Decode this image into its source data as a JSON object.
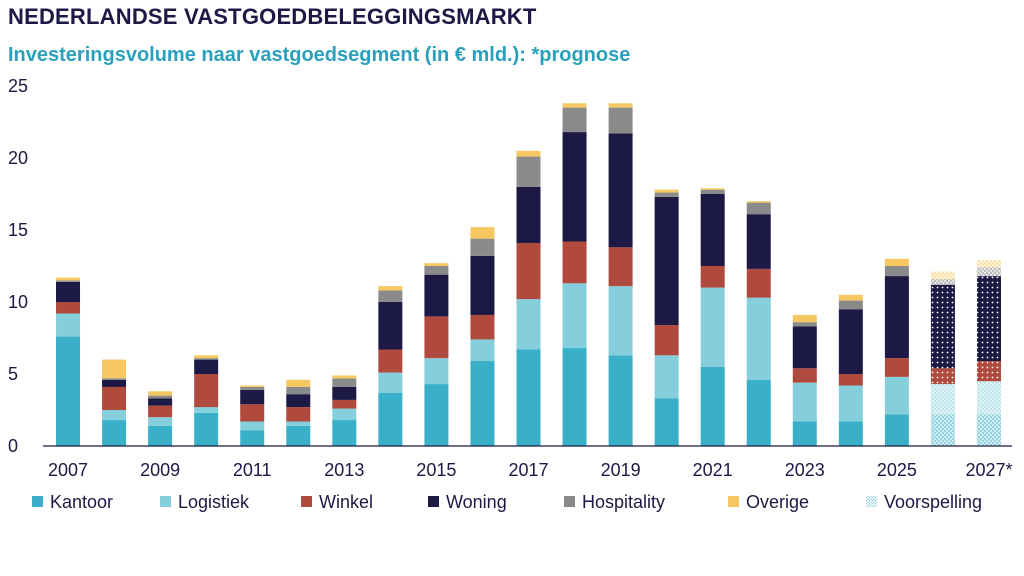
{
  "chart_data": {
    "type": "bar",
    "stacked": true,
    "title": "NEDERLANDSE VASTGOEDBELEGGINGSMARKT",
    "subtitle": "Investeringsvolume naar vastgoedsegment (in € mld.): *prognose",
    "xlabel": "",
    "ylabel": "",
    "ylim": [
      0,
      25
    ],
    "y_ticks": [
      "0",
      "5",
      "10",
      "15",
      "20",
      "25"
    ],
    "categories": [
      "2007",
      "2008",
      "2009",
      "2010",
      "2011",
      "2012",
      "2013",
      "2014",
      "2015",
      "2016",
      "2017",
      "2018",
      "2019",
      "2020",
      "2021",
      "2022",
      "2023",
      "2024",
      "2025",
      "2026*",
      "2027*"
    ],
    "x_tick_labels": [
      "2007",
      "2009",
      "2011",
      "2013",
      "2015",
      "2017",
      "2019",
      "2021",
      "2023",
      "2025",
      "2027*"
    ],
    "forecast_categories": [
      "2026*",
      "2027*"
    ],
    "grid": false,
    "legend_position": "bottom",
    "series": [
      {
        "name": "Kantoor",
        "color": "#3ab0c8",
        "values": [
          7.6,
          1.8,
          1.4,
          2.3,
          1.1,
          1.4,
          1.8,
          3.7,
          4.3,
          5.9,
          6.7,
          6.8,
          6.3,
          3.3,
          5.5,
          4.6,
          1.7,
          1.7,
          2.2,
          2.2,
          2.2
        ]
      },
      {
        "name": "Logistiek",
        "color": "#85cedb",
        "values": [
          1.6,
          0.7,
          0.6,
          0.4,
          0.6,
          0.3,
          0.8,
          1.4,
          1.8,
          1.5,
          3.5,
          4.5,
          4.8,
          3.0,
          5.5,
          5.7,
          2.7,
          2.5,
          2.6,
          2.1,
          2.3
        ]
      },
      {
        "name": "Winkel",
        "color": "#b14a3e",
        "values": [
          0.8,
          1.6,
          0.8,
          2.3,
          1.2,
          1.0,
          0.6,
          1.6,
          2.9,
          1.7,
          3.9,
          2.9,
          2.7,
          2.1,
          1.5,
          2.0,
          1.0,
          0.8,
          1.3,
          1.1,
          1.4
        ]
      },
      {
        "name": "Woning",
        "color": "#1c1a45",
        "values": [
          1.4,
          0.5,
          0.5,
          1.0,
          1.0,
          0.9,
          0.9,
          3.3,
          2.9,
          4.1,
          3.9,
          7.6,
          7.9,
          8.9,
          5.0,
          3.8,
          2.9,
          4.5,
          5.7,
          5.8,
          5.9
        ]
      },
      {
        "name": "Hospitality",
        "color": "#8a8a8a",
        "values": [
          0.1,
          0.1,
          0.2,
          0.1,
          0.2,
          0.5,
          0.6,
          0.8,
          0.6,
          1.2,
          2.1,
          1.7,
          1.8,
          0.3,
          0.3,
          0.8,
          0.3,
          0.6,
          0.7,
          0.4,
          0.6
        ]
      },
      {
        "name": "Overige",
        "color": "#f5c862",
        "values": [
          0.2,
          1.3,
          0.3,
          0.2,
          0.1,
          0.5,
          0.2,
          0.3,
          0.2,
          0.8,
          0.4,
          0.3,
          0.3,
          0.2,
          0.1,
          0.1,
          0.5,
          0.4,
          0.5,
          0.5,
          0.5
        ]
      }
    ],
    "legend": [
      "Kantoor",
      "Logistiek",
      "Winkel",
      "Woning",
      "Hospitality",
      "Overige",
      "Voorspelling"
    ]
  }
}
